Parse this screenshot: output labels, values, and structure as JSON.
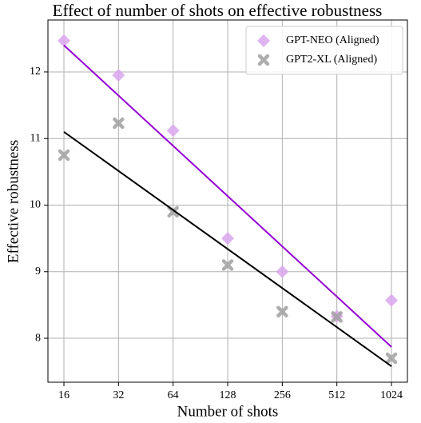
{
  "chart_data": {
    "type": "scatter",
    "title": "Effect of number of shots on effective robustness",
    "x_label": "Number of shots",
    "y_label": "Effective robustness",
    "xscale": "log",
    "grid": true,
    "legend": "upper right",
    "xlim": [
      13.06,
      1254
    ],
    "xticks": [
      16,
      32,
      64,
      128,
      256,
      512,
      1024
    ],
    "ylim": [
      7.34,
      12.78
    ],
    "yticks": [
      8,
      9,
      10,
      11,
      12
    ],
    "series": [
      {
        "name": "GPT-NEO (Aligned)",
        "color": "#dba6ee",
        "marker": "diamond",
        "x": [
          16,
          32,
          64,
          128,
          256,
          512,
          1024
        ],
        "values": [
          12.47,
          11.95,
          11.12,
          9.5,
          9.0,
          8.33,
          8.57
        ],
        "fit": {
          "color": "#9400d3",
          "x": [
            16,
            1024
          ],
          "values": [
            12.4,
            7.87
          ]
        }
      },
      {
        "name": "GPT2-XL (Aligned)",
        "color": "#a0a0a0",
        "marker": "x",
        "x": [
          16,
          32,
          64,
          128,
          256,
          512,
          1024
        ],
        "values": [
          10.75,
          11.23,
          9.9,
          9.1,
          8.4,
          8.32,
          7.7
        ],
        "fit": {
          "color": "#000000",
          "x": [
            16,
            1024
          ],
          "values": [
            11.1,
            7.58
          ]
        }
      }
    ]
  }
}
